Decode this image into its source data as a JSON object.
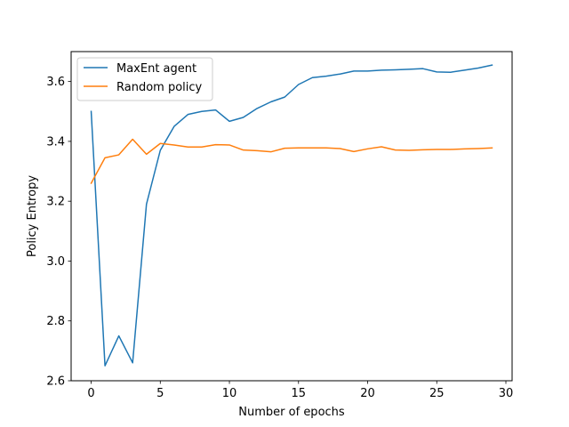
{
  "chart_data": {
    "type": "line",
    "title": "",
    "xlabel": "Number of epochs",
    "ylabel": "Policy Entropy",
    "xlim": [
      -1.45,
      30.45
    ],
    "ylim": [
      2.6,
      3.7
    ],
    "xticks": [
      0,
      5,
      10,
      15,
      20,
      25,
      30
    ],
    "yticks": [
      2.6,
      2.8,
      3.0,
      3.2,
      3.4,
      3.6
    ],
    "xtick_labels": [
      "0",
      "5",
      "10",
      "15",
      "20",
      "25",
      "30"
    ],
    "ytick_labels": [
      "2.6",
      "2.8",
      "3.0",
      "3.2",
      "3.4",
      "3.6"
    ],
    "grid": false,
    "legend_position": "top-left",
    "x": [
      0,
      1,
      2,
      3,
      4,
      5,
      6,
      7,
      8,
      9,
      10,
      11,
      12,
      13,
      14,
      15,
      16,
      17,
      18,
      19,
      20,
      21,
      22,
      23,
      24,
      25,
      26,
      27,
      28,
      29
    ],
    "series": [
      {
        "name": "MaxEnt agent",
        "color": "#1f77b4",
        "values": [
          3.5,
          2.65,
          2.75,
          2.66,
          3.19,
          3.37,
          3.45,
          3.49,
          3.5,
          3.505,
          3.467,
          3.48,
          3.51,
          3.532,
          3.548,
          3.59,
          3.613,
          3.618,
          3.625,
          3.635,
          3.635,
          3.638,
          3.639,
          3.641,
          3.643,
          3.632,
          3.631,
          3.638,
          3.645,
          3.655
        ]
      },
      {
        "name": "Random policy",
        "color": "#ff7f0e",
        "values": [
          3.26,
          3.345,
          3.355,
          3.407,
          3.357,
          3.393,
          3.388,
          3.381,
          3.381,
          3.389,
          3.388,
          3.371,
          3.369,
          3.365,
          3.377,
          3.378,
          3.378,
          3.378,
          3.376,
          3.366,
          3.375,
          3.382,
          3.371,
          3.37,
          3.372,
          3.373,
          3.373,
          3.375,
          3.376,
          3.378
        ]
      }
    ]
  }
}
